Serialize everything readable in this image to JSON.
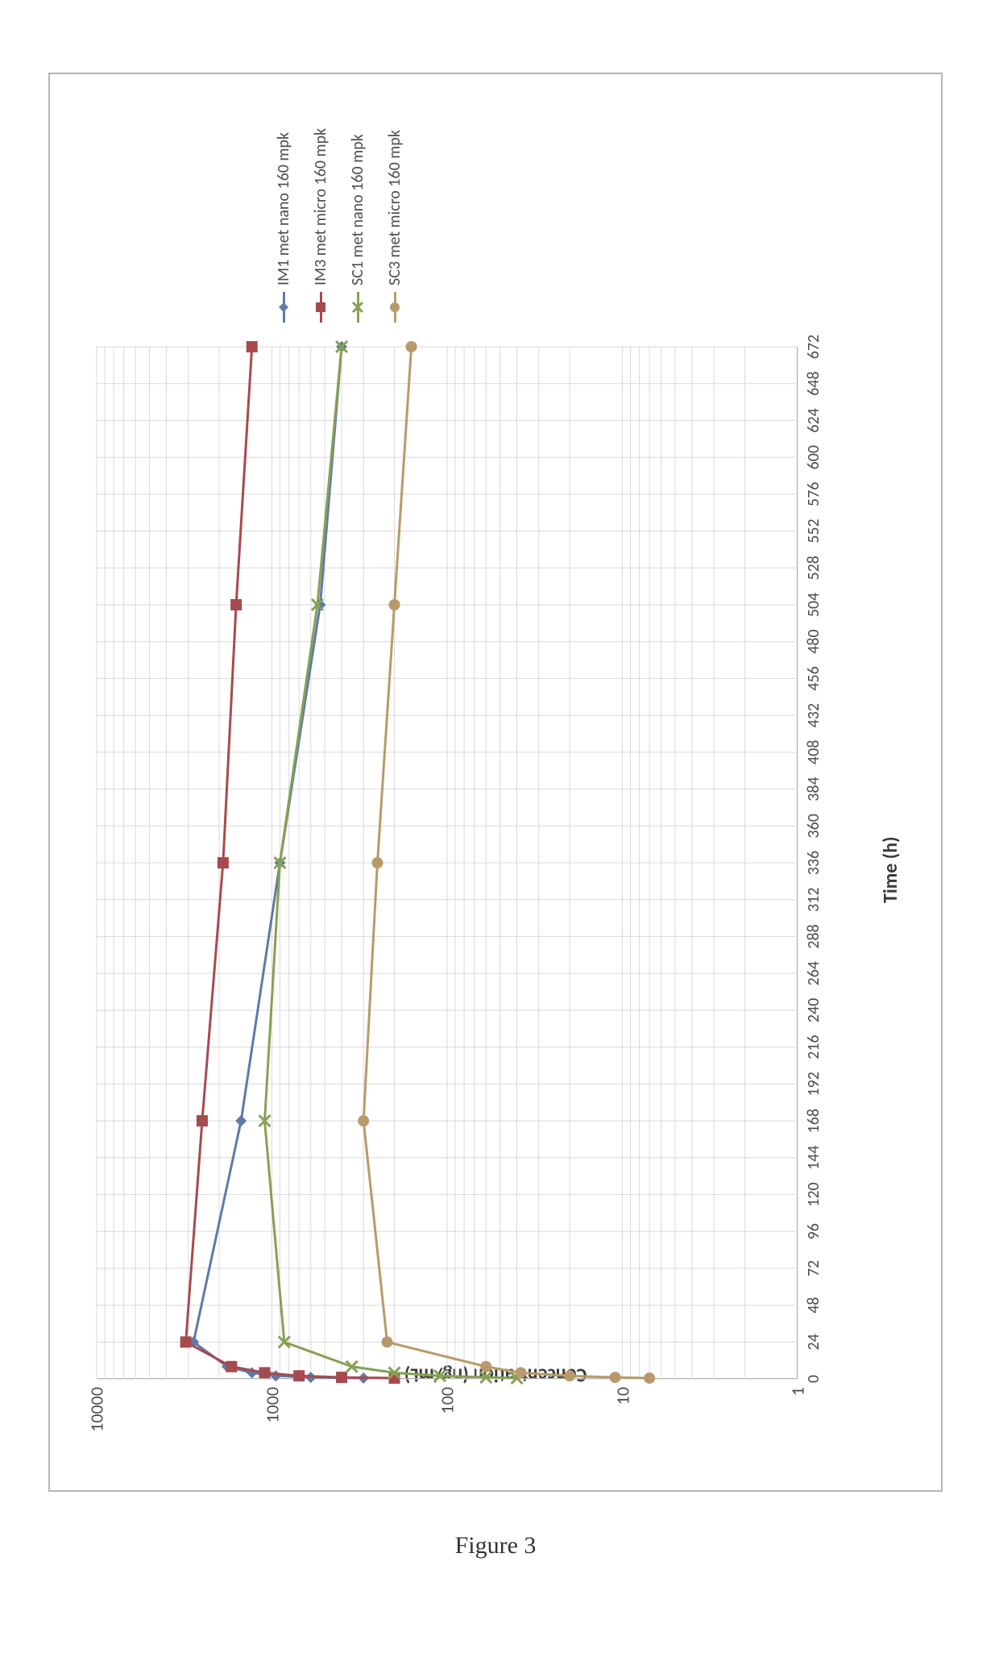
{
  "figure_caption": "Figure 3",
  "chart": {
    "type": "line",
    "y_scale": "log",
    "y_axis_label": "Concentration (ng/mL)",
    "x_axis_label": "Time (h)",
    "label_fontsize": 24,
    "tick_fontsize": 20,
    "xlim": [
      0,
      672
    ],
    "ylim": [
      1,
      10000
    ],
    "x_tick_step": 24,
    "x_ticks": [
      0,
      24,
      48,
      72,
      96,
      120,
      144,
      168,
      192,
      216,
      240,
      264,
      288,
      312,
      336,
      360,
      384,
      408,
      432,
      456,
      480,
      504,
      528,
      552,
      576,
      600,
      624,
      648,
      672
    ],
    "y_ticks": [
      1,
      10,
      100,
      1000,
      10000
    ],
    "background_color": "#ffffff",
    "grid_color": "#d9d9d9",
    "axis_color": "#888888",
    "frame_border_color": "#b5b5b5",
    "line_width": 3,
    "marker_size": 14,
    "series": [
      {
        "id": "IM1",
        "label": "IM1 met nano 160 mpk",
        "color": "#5e7aa7",
        "marker": "diamond",
        "points": [
          {
            "x": 0.5,
            "y": 300
          },
          {
            "x": 1,
            "y": 600
          },
          {
            "x": 2,
            "y": 950
          },
          {
            "x": 4,
            "y": 1300
          },
          {
            "x": 8,
            "y": 1800
          },
          {
            "x": 24,
            "y": 2800
          },
          {
            "x": 168,
            "y": 1500
          },
          {
            "x": 336,
            "y": 900
          },
          {
            "x": 504,
            "y": 530
          },
          {
            "x": 672,
            "y": 400
          }
        ]
      },
      {
        "id": "IM3",
        "label": "IM3 met micro 160 mpk",
        "color": "#a74a4f",
        "marker": "square",
        "points": [
          {
            "x": 0.5,
            "y": 200
          },
          {
            "x": 1,
            "y": 400
          },
          {
            "x": 2,
            "y": 700
          },
          {
            "x": 4,
            "y": 1100
          },
          {
            "x": 8,
            "y": 1700
          },
          {
            "x": 24,
            "y": 3100
          },
          {
            "x": 168,
            "y": 2500
          },
          {
            "x": 336,
            "y": 1900
          },
          {
            "x": 504,
            "y": 1600
          },
          {
            "x": 672,
            "y": 1300
          }
        ]
      },
      {
        "id": "SC1",
        "label": "SC1 met nano 160 mpk",
        "color": "#86a154",
        "marker": "x",
        "points": [
          {
            "x": 0.5,
            "y": 40
          },
          {
            "x": 1,
            "y": 60
          },
          {
            "x": 2,
            "y": 110
          },
          {
            "x": 4,
            "y": 200
          },
          {
            "x": 8,
            "y": 350
          },
          {
            "x": 24,
            "y": 850
          },
          {
            "x": 168,
            "y": 1100
          },
          {
            "x": 336,
            "y": 900
          },
          {
            "x": 504,
            "y": 550
          },
          {
            "x": 672,
            "y": 400
          }
        ]
      },
      {
        "id": "SC3",
        "label": "SC3 met micro 160 mpk",
        "color": "#b89a6a",
        "marker": "circle",
        "points": [
          {
            "x": 0.5,
            "y": 7
          },
          {
            "x": 1,
            "y": 11
          },
          {
            "x": 2,
            "y": 20
          },
          {
            "x": 4,
            "y": 38
          },
          {
            "x": 8,
            "y": 60
          },
          {
            "x": 24,
            "y": 220
          },
          {
            "x": 168,
            "y": 300
          },
          {
            "x": 336,
            "y": 250
          },
          {
            "x": 504,
            "y": 200
          },
          {
            "x": 672,
            "y": 160
          }
        ]
      }
    ],
    "legend": {
      "x_offset": 1430,
      "y_offset": 260,
      "row_gap": 22
    }
  }
}
